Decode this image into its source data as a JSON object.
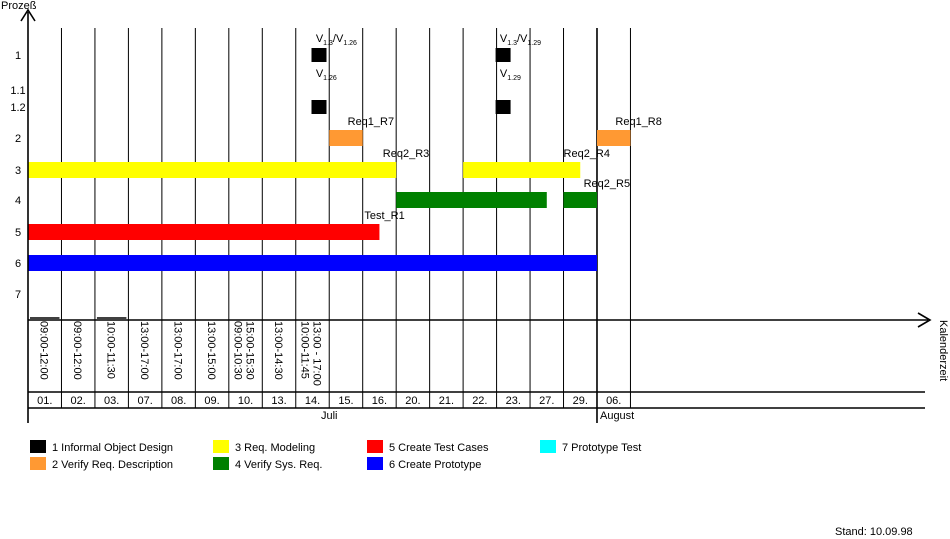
{
  "chart_data": {
    "type": "gantt",
    "y_axis_label": "Prozeß",
    "x_axis_label": "Kalenderzeit",
    "y_tick_labels": [
      "1",
      "1.1",
      "1.2",
      "2",
      "3",
      "4",
      "5",
      "6",
      "7"
    ],
    "dates": [
      "01.",
      "02.",
      "03.",
      "07.",
      "08.",
      "09.",
      "10.",
      "13.",
      "14.",
      "15.",
      "16.",
      "20.",
      "21.",
      "22.",
      "23.",
      "27.",
      "29.",
      "06."
    ],
    "times": [
      [
        "09:00-12:00"
      ],
      [
        "09:00-12:00"
      ],
      [
        "10:00-11:30"
      ],
      [
        "13:00-17:00"
      ],
      [
        "13:00-17:00"
      ],
      [
        "13:00-15:00"
      ],
      [
        "09:00-10:30",
        "15:00-15:30"
      ],
      [
        "13:00-14:30"
      ],
      [
        "10:00-11:45",
        "13:00 - 17:00"
      ],
      [],
      [],
      [],
      [],
      [],
      [],
      [],
      [],
      []
    ],
    "months": [
      {
        "label": "Juli",
        "start_col": 0,
        "end_col": 17
      },
      {
        "label": "August",
        "start_col": 17,
        "end_col": 18
      }
    ],
    "bars": [
      {
        "process": "3",
        "start_col": 0,
        "end_col": 11,
        "color": "#ffff00"
      },
      {
        "process": "3",
        "start_col": 13,
        "end_col": 16.5,
        "color": "#ffff00"
      },
      {
        "process": "4",
        "start_col": 11,
        "end_col": 15.5,
        "color": "#008000"
      },
      {
        "process": "4",
        "start_col": 16,
        "end_col": 17,
        "color": "#008000"
      },
      {
        "process": "5",
        "start_col": 0,
        "end_col": 10.5,
        "color": "#ff0000"
      },
      {
        "process": "6",
        "start_col": 0,
        "end_col": 17,
        "color": "#0000ff"
      },
      {
        "process": "2",
        "start_col": 9,
        "end_col": 10,
        "color": "#ff9933"
      },
      {
        "process": "2",
        "start_col": 17,
        "end_col": 18,
        "color": "#ff9933"
      }
    ],
    "markers": [
      {
        "process": "1",
        "col": 8.5,
        "color": "#000000"
      },
      {
        "process": "1.2",
        "col": 8.5,
        "color": "#000000"
      },
      {
        "process": "1",
        "col": 14,
        "color": "#000000"
      },
      {
        "process": "1.2",
        "col": 14,
        "color": "#000000"
      }
    ],
    "annotations": [
      {
        "main": "V",
        "sub": "1.3",
        "mid": "/V",
        "sub2": "1.26",
        "process": "1",
        "col": 8.6
      },
      {
        "main": "V",
        "sub": "1.26",
        "process": "1.1",
        "col": 8.6
      },
      {
        "main": "V",
        "sub": "1.3",
        "mid": "/V",
        "sub2": "1.29",
        "process": "1",
        "col": 14.1
      },
      {
        "main": "V",
        "sub": "1.29",
        "process": "1.1",
        "col": 14.1
      },
      {
        "main": "Req1_R7",
        "process": "2",
        "col": 9.55
      },
      {
        "main": "Req1_R8",
        "process": "2",
        "col": 17.55
      },
      {
        "main": "Req2_R3",
        "process": "3",
        "col": 10.6
      },
      {
        "main": "Req2_R4",
        "process": "3",
        "col": 16.0
      },
      {
        "main": "Req2_R5",
        "process": "4",
        "col": 16.6
      },
      {
        "main": "Test_R1",
        "process": "5",
        "col": 10.05
      }
    ],
    "legend": [
      {
        "num": "1",
        "label": "Informal Object Design",
        "color": "#000000"
      },
      {
        "num": "2",
        "label": "Verify Req. Description",
        "color": "#ff9933"
      },
      {
        "num": "3",
        "label": "Req. Modeling",
        "color": "#ffff00"
      },
      {
        "num": "4",
        "label": "Verify Sys. Req.",
        "color": "#008000"
      },
      {
        "num": "5",
        "label": "Create Test Cases",
        "color": "#ff0000"
      },
      {
        "num": "6",
        "label": "Create Prototype",
        "color": "#0000ff"
      },
      {
        "num": "7",
        "label": "Prototype Test",
        "color": "#00ffff"
      }
    ],
    "legend_position": "bottom-left"
  },
  "footer": {
    "stand": "Stand: 10.09.98"
  }
}
